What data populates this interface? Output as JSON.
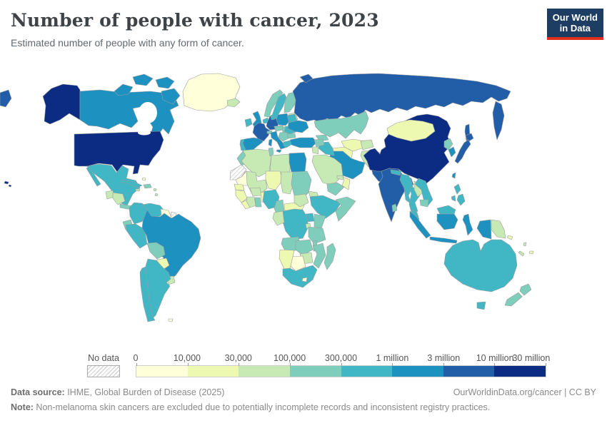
{
  "header": {
    "title": "Number of people with cancer, 2023",
    "subtitle": "Estimated number of people with any form of cancer.",
    "logo": {
      "line1": "Our World",
      "line2": "in Data",
      "bg": "#1d3d63",
      "accent": "#e0301e"
    }
  },
  "legend": {
    "no_data_label": "No data"
  },
  "chart_data": {
    "type": "choropleth-map",
    "title": "Number of people with cancer, 2023",
    "subtitle": "Estimated number of people with any form of cancer.",
    "year": "2023",
    "bin_edges": [
      "0",
      "10,000",
      "30,000",
      "100,000",
      "300,000",
      "1 million",
      "3 million",
      "10 million",
      "30 million"
    ],
    "bin_colors": [
      "#ffffd9",
      "#edf8b1",
      "#c7e9b4",
      "#7fcdbb",
      "#41b6c4",
      "#1d91c0",
      "#225ea8",
      "#0c2c84"
    ],
    "no_data_style": "gray-hatched",
    "regions": {
      "alaska": 8,
      "usa": 8,
      "hawaii": 8,
      "canada": 6,
      "arctic-islands": 6,
      "greenland": 1,
      "iceland": 3,
      "mexico": 5,
      "baja": 5,
      "guatemala": 3,
      "honduras-nicaragua": 3,
      "costa-rica-panama": 4,
      "cuba": 5,
      "hispaniola": 4,
      "jamaica": 3,
      "lesser-antilles": 3,
      "bahamas": 1,
      "colombia": 5,
      "venezuela": 5,
      "guyana-suriname": 1,
      "french-guiana": "nodata",
      "ecuador": 4,
      "peru": 5,
      "brazil": 6,
      "bolivia": 4,
      "paraguay": 2,
      "uruguay": 3,
      "argentina": 5,
      "chile": 5,
      "falkland": 1,
      "ireland": 5,
      "uk": 6,
      "portugal": 5,
      "spain": 6,
      "france": 7,
      "corsica-sardinia": 6,
      "germany": 7,
      "benelux": 5,
      "switzerland": 4,
      "italy": 6,
      "sicily": 6,
      "denmark": 5,
      "norway": 4,
      "sweden": 5,
      "finland": 4,
      "baltics": 3,
      "poland": 6,
      "czechia-austria": 4,
      "hungary-slovakia": 4,
      "balkans": 4,
      "greece": 5,
      "romania": 5,
      "bulgaria": 4,
      "belarus": 5,
      "ukraine": 6,
      "russia": 7,
      "russia-wrap": 7,
      "kamchatka": 7,
      "sakhalin": 7,
      "novaya-zemlya": 7,
      "turkey": 6,
      "caucasus": 4,
      "kazakhstan": 4,
      "uzbekistan": 2,
      "turkmenistan": 2,
      "kyrgyz-tajik": 3,
      "iran": 6,
      "iraq": 5,
      "syria": 4,
      "jordan-israel": 3,
      "saudi": 3,
      "yemen": 4,
      "oman": 2,
      "uae": 3,
      "afghanistan": 3,
      "pakistan": 7,
      "india": 7,
      "nepal": 5,
      "bangladesh": 6,
      "sri-lanka": 4,
      "china": 8,
      "mongolia": 2,
      "north-korea": 4,
      "south-korea": 6,
      "japan": 7,
      "hokkaido": 7,
      "taiwan": 6,
      "myanmar": 5,
      "thailand": 5,
      "laos": 3,
      "vietnam": 5,
      "cambodia": 4,
      "malaysia-peninsula": 5,
      "sumatra": 6,
      "java": 6,
      "borneo-malaysia": 5,
      "borneo-indonesia": 6,
      "sulawesi": 6,
      "west-papua": 6,
      "png": 3,
      "philippines": 5,
      "morocco": 4,
      "algeria": 3,
      "tunisia": 4,
      "libya": 3,
      "egypt": 6,
      "western-sahara": "nodata",
      "mauritania": 1,
      "mali": 3,
      "niger": 2,
      "chad": 3,
      "sudan": 4,
      "eritrea": 3,
      "senegal": 2,
      "guinea-group": 2,
      "sierra-liberia": 2,
      "ivory-coast": 3,
      "ghana": 4,
      "burkina": 3,
      "togo-benin": 2,
      "nigeria": 5,
      "cameroon": 4,
      "car": 2,
      "south-sudan": 3,
      "ethiopia": 5,
      "somalia": 4,
      "uganda": 5,
      "kenya": 4,
      "drc": 5,
      "gabon-congo": 3,
      "rwanda-burundi": 3,
      "tanzania": 4,
      "angola": 4,
      "zambia": 4,
      "malawi": 4,
      "mozambique": 4,
      "zimbabwe": 3,
      "botswana": 1,
      "namibia": 2,
      "south-africa": 5,
      "lesotho": 1,
      "madagascar": 4,
      "australia": 5,
      "tasmania": 5,
      "nz-north": 4,
      "nz-south": 4,
      "fiji": 2,
      "vanuatu": 3,
      "new-caledonia": 3,
      "solomon": 2
    }
  },
  "map": {
    "stroke": "#9c9c9c"
  },
  "footer": {
    "source_label": "Data source:",
    "source_text": " IHME, Global Burden of Disease (2025)",
    "right_text": "OurWorldinData.org/cancer | CC BY",
    "note_label": "Note:",
    "note_text": " Non-melanoma skin cancers are excluded due to potentially incomplete records and inconsistent registry practices."
  }
}
